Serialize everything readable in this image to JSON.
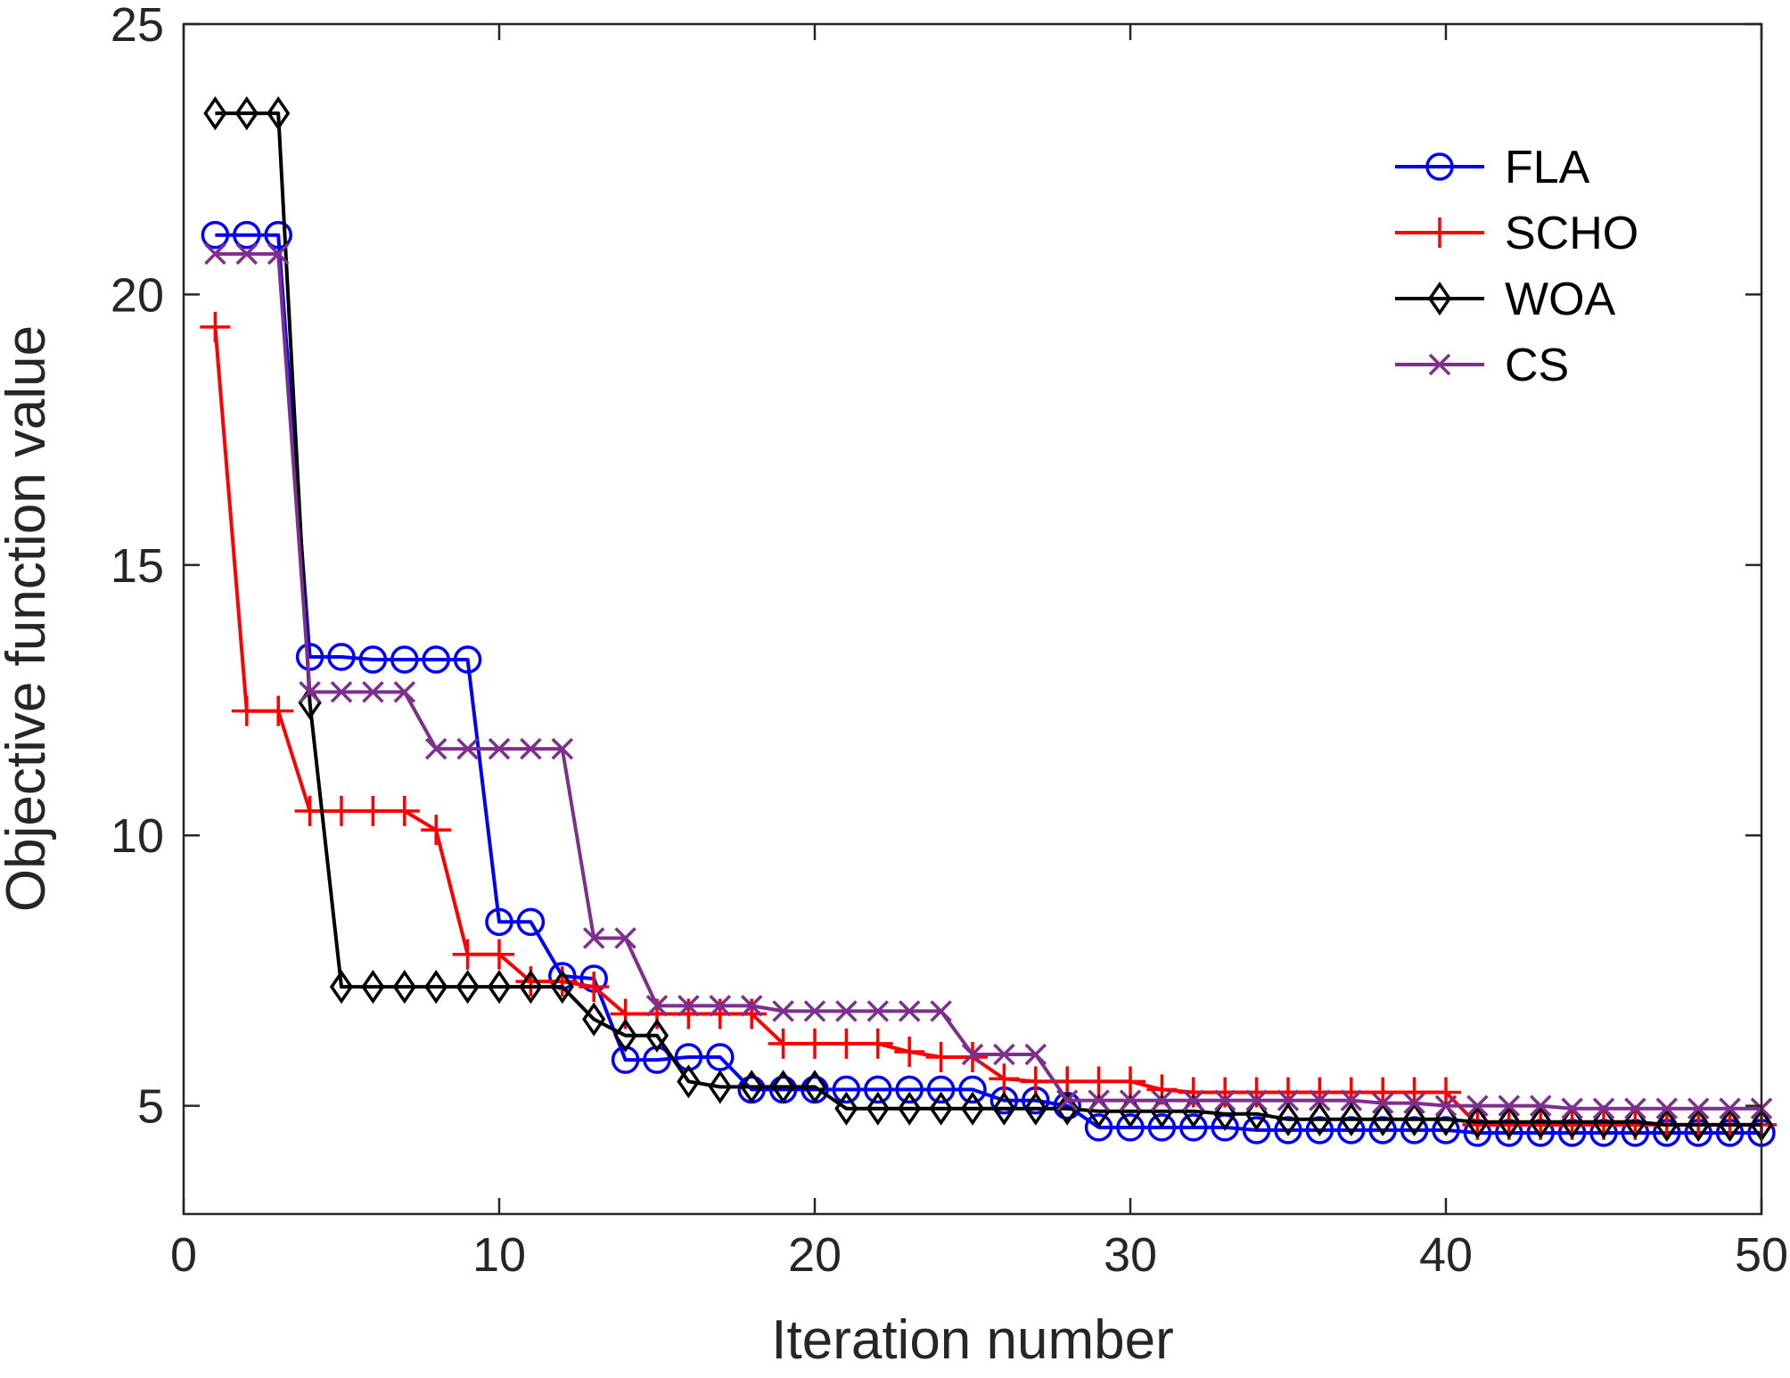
{
  "chart_data": {
    "type": "line",
    "title": "",
    "xlabel": "Iteration number",
    "ylabel": "Objective function value",
    "xlim": [
      0,
      50
    ],
    "ylim": [
      3,
      25
    ],
    "xticks": [
      0,
      10,
      20,
      30,
      40,
      50
    ],
    "yticks": [
      5,
      10,
      15,
      20,
      25
    ],
    "grid": false,
    "legend_position": "top-right",
    "x": [
      1,
      2,
      3,
      4,
      5,
      6,
      7,
      8,
      9,
      10,
      11,
      12,
      13,
      14,
      15,
      16,
      17,
      18,
      19,
      20,
      21,
      22,
      23,
      24,
      25,
      26,
      27,
      28,
      29,
      30,
      31,
      32,
      33,
      34,
      35,
      36,
      37,
      38,
      39,
      40,
      41,
      42,
      43,
      44,
      45,
      46,
      47,
      48,
      49,
      50
    ],
    "series": [
      {
        "name": "FLA",
        "color": "#0000ff",
        "marker": "circle",
        "values": [
          21.1,
          21.1,
          21.1,
          13.3,
          13.3,
          13.25,
          13.25,
          13.25,
          13.25,
          8.4,
          8.4,
          7.4,
          7.35,
          5.85,
          5.85,
          5.9,
          5.9,
          5.3,
          5.3,
          5.3,
          5.3,
          5.3,
          5.3,
          5.3,
          5.3,
          5.1,
          5.1,
          5.0,
          4.6,
          4.6,
          4.6,
          4.6,
          4.6,
          4.55,
          4.55,
          4.55,
          4.55,
          4.55,
          4.55,
          4.55,
          4.5,
          4.5,
          4.5,
          4.5,
          4.5,
          4.5,
          4.5,
          4.5,
          4.5,
          4.5
        ]
      },
      {
        "name": "SCHO",
        "color": "#ff0000",
        "marker": "plus",
        "values": [
          19.4,
          12.3,
          12.3,
          10.45,
          10.45,
          10.45,
          10.45,
          10.1,
          7.8,
          7.8,
          7.3,
          7.3,
          7.2,
          6.7,
          6.7,
          6.7,
          6.7,
          6.7,
          6.15,
          6.15,
          6.15,
          6.15,
          6.0,
          5.9,
          5.9,
          5.5,
          5.45,
          5.45,
          5.45,
          5.45,
          5.3,
          5.25,
          5.25,
          5.25,
          5.25,
          5.25,
          5.25,
          5.25,
          5.25,
          5.25,
          4.65,
          4.65,
          4.65,
          4.65,
          4.65,
          4.65,
          4.65,
          4.65,
          4.65,
          4.65
        ]
      },
      {
        "name": "WOA",
        "color": "#000000",
        "marker": "diamond",
        "values": [
          23.35,
          23.35,
          23.35,
          12.45,
          7.2,
          7.2,
          7.2,
          7.2,
          7.2,
          7.2,
          7.2,
          7.2,
          6.6,
          6.3,
          6.3,
          5.45,
          5.35,
          5.35,
          5.35,
          5.35,
          4.95,
          4.95,
          4.95,
          4.95,
          4.95,
          4.95,
          4.95,
          4.95,
          4.9,
          4.9,
          4.9,
          4.9,
          4.85,
          4.85,
          4.75,
          4.75,
          4.75,
          4.75,
          4.75,
          4.75,
          4.7,
          4.7,
          4.7,
          4.7,
          4.7,
          4.7,
          4.65,
          4.65,
          4.65,
          4.65
        ]
      },
      {
        "name": "CS",
        "color": "#7e2f8e",
        "marker": "x",
        "values": [
          20.75,
          20.75,
          20.75,
          12.65,
          12.65,
          12.65,
          12.65,
          11.6,
          11.6,
          11.6,
          11.6,
          11.6,
          8.1,
          8.1,
          6.85,
          6.85,
          6.85,
          6.85,
          6.75,
          6.75,
          6.75,
          6.75,
          6.75,
          6.75,
          5.95,
          5.95,
          5.95,
          5.1,
          5.1,
          5.1,
          5.1,
          5.1,
          5.1,
          5.1,
          5.1,
          5.1,
          5.1,
          5.05,
          5.05,
          5.0,
          5.0,
          5.0,
          5.0,
          4.95,
          4.95,
          4.95,
          4.95,
          4.95,
          4.95,
          4.95
        ]
      }
    ]
  }
}
